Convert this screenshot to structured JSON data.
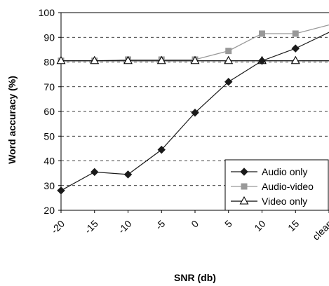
{
  "chart_data": {
    "type": "line",
    "title": "",
    "xlabel": "SNR (db)",
    "ylabel": "Word accuracy (%)",
    "categories": [
      "-20",
      "-15",
      "-10",
      "-5",
      "0",
      "5",
      "10",
      "15",
      "clean"
    ],
    "ylim": [
      20,
      100
    ],
    "yticks": [
      20,
      30,
      40,
      50,
      60,
      70,
      80,
      90,
      100
    ],
    "grid": "horizontal dashed",
    "legend_position": "bottom-right",
    "series": [
      {
        "name": "Audio only",
        "values": [
          28,
          35.5,
          34.5,
          44.5,
          59.5,
          72,
          80.5,
          85.5,
          92
        ],
        "color": "#1a1a1a",
        "marker": "diamond"
      },
      {
        "name": "Audio-video",
        "values": [
          80.5,
          80.5,
          81,
          81,
          81,
          84.5,
          91.5,
          91.5,
          95
        ],
        "color": "#999999",
        "marker": "square"
      },
      {
        "name": "Video only",
        "values": [
          80.5,
          80.5,
          80.5,
          80.5,
          80.5,
          80.5,
          80.5,
          80.5,
          80.5
        ],
        "color": "#000000",
        "marker": "triangle"
      }
    ]
  }
}
